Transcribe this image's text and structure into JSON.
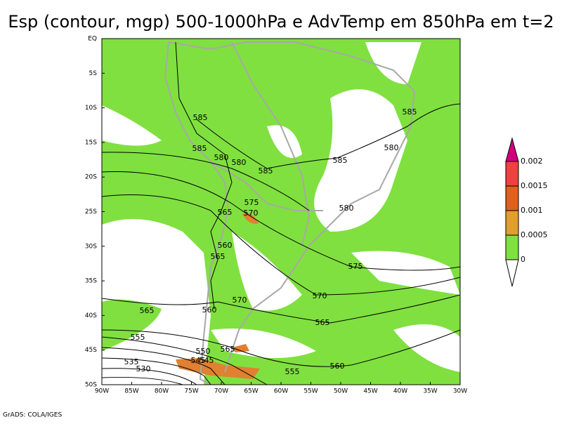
{
  "title": "Esp (contour, mgp) 500-1000hPa e AdvTemp em 850hPa em t=2",
  "lat_labels": [
    "EQ",
    "5S",
    "10S",
    "15S",
    "20S",
    "25S",
    "30S",
    "35S",
    "40S",
    "45S",
    "50S"
  ],
  "lon_labels": [
    "90W",
    "85W",
    "80W",
    "75W",
    "70W",
    "65W",
    "60W",
    "55W",
    "50W",
    "45W",
    "40W",
    "35W",
    "30W"
  ],
  "colorbar": {
    "labels": [
      0.002,
      0.0015,
      0.001,
      0.0005,
      0
    ]
  },
  "contour_labels": [
    "585",
    "585",
    "585",
    "580",
    "580",
    "585",
    "585",
    "580",
    "575",
    "565",
    "570",
    "580",
    "560",
    "565",
    "575",
    "570",
    "570",
    "565",
    "560",
    "565",
    "555",
    "550",
    "565",
    "545",
    "545",
    "535",
    "530",
    "555",
    "560"
  ],
  "footer": "GrADS: COLA/IGES"
}
